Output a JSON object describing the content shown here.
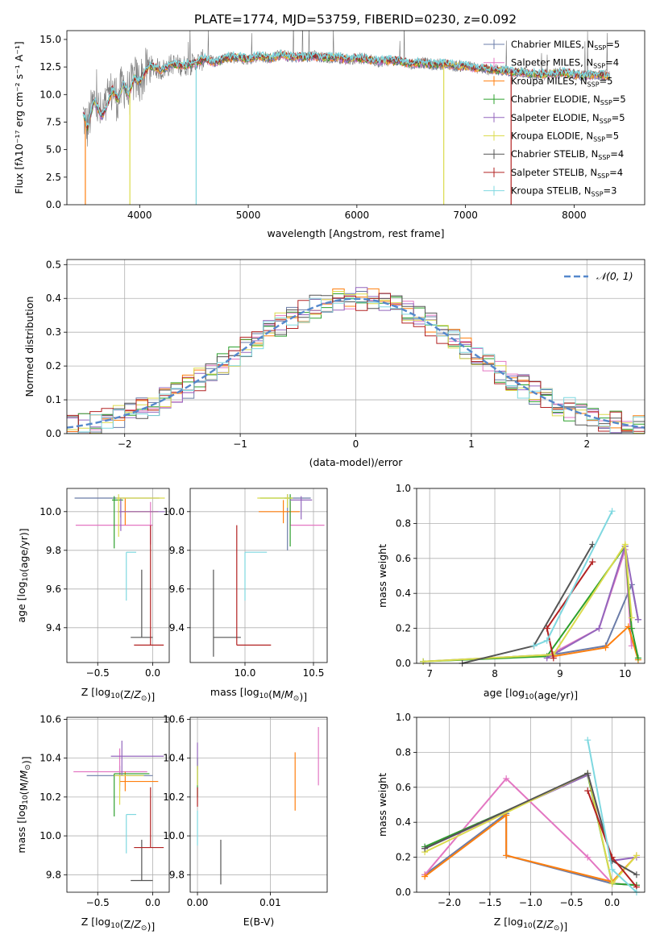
{
  "figure": {
    "title": "PLATE=1774, MJD=53759, FIBERID=0230, z=0.092"
  },
  "chart_data": [
    {
      "id": "spectrum",
      "type": "line",
      "xlabel": "wavelength [Angstrom, rest frame]",
      "ylabel": "Flux [f_λ 10^-17 erg cm^-2 s^-1 A^-1]",
      "xlim": [
        3330,
        8650
      ],
      "ylim": [
        0,
        15.8
      ],
      "xticks": [
        4000,
        5000,
        6000,
        7000,
        8000
      ],
      "yticks": [
        0.0,
        2.5,
        5.0,
        7.5,
        10.0,
        12.5,
        15.0
      ],
      "grid": false,
      "legend_position": "top-right",
      "data_wavelength": [
        3480,
        3520,
        3580,
        3650,
        3700,
        3750,
        3800,
        3850,
        3900,
        3950,
        4000,
        4050,
        4100,
        4200,
        4300,
        4400,
        4500,
        4600,
        4700,
        4800,
        4900,
        5000,
        5100,
        5200,
        5300,
        5400,
        5500,
        5600,
        5700,
        5800,
        5900,
        6000,
        6100,
        6200,
        6300,
        6400,
        6500,
        6600,
        6700,
        6800,
        6900,
        7000,
        7100,
        7200,
        7300,
        7400,
        7500,
        7600,
        7700,
        7800,
        7900,
        8000,
        8100,
        8200,
        8300
      ],
      "data_flux": [
        8.2,
        7.0,
        9.5,
        8.0,
        9.0,
        10.5,
        9.5,
        11.0,
        10.0,
        11.5,
        11.2,
        12.0,
        12.6,
        12.2,
        12.8,
        12.6,
        12.8,
        13.2,
        12.9,
        13.3,
        13.4,
        13.2,
        13.5,
        13.3,
        13.6,
        13.4,
        13.4,
        13.5,
        13.3,
        13.4,
        13.2,
        13.3,
        13.2,
        13.0,
        13.1,
        13.0,
        12.8,
        12.9,
        12.7,
        12.8,
        12.6,
        12.6,
        12.4,
        12.3,
        12.2,
        12.1,
        12.0,
        11.9,
        11.8,
        11.9,
        12.0,
        11.8,
        11.7,
        11.8,
        11.7
      ],
      "model_drops": [
        3500,
        3910,
        4520,
        6800,
        7420
      ],
      "series": [
        {
          "name": "Chabrier MILES, N_SSP=5",
          "color": "#6b7ca8"
        },
        {
          "name": "Salpeter MILES, N_SSP=4",
          "color": "#e377c2"
        },
        {
          "name": "Kroupa MILES, N_SSP=5",
          "color": "#ff7f0e"
        },
        {
          "name": "Chabrier ELODIE, N_SSP=5",
          "color": "#2ca02c"
        },
        {
          "name": "Salpeter ELODIE, N_SSP=5",
          "color": "#9467bd"
        },
        {
          "name": "Kroupa ELODIE, N_SSP=5",
          "color": "#dbdb4d"
        },
        {
          "name": "Chabrier STELIB, N_SSP=4",
          "color": "#555555"
        },
        {
          "name": "Salpeter STELIB, N_SSP=4",
          "color": "#b22222"
        },
        {
          "name": "Kroupa STELIB, N_SSP=3",
          "color": "#7fd8e0"
        }
      ]
    },
    {
      "id": "residuals",
      "type": "histogram",
      "xlabel": "(data-model)/error",
      "ylabel": "Normed distribution",
      "xlim": [
        -2.5,
        2.5
      ],
      "ylim": [
        0,
        0.515
      ],
      "xticks": [
        -2,
        -1,
        0,
        1,
        2
      ],
      "yticks": [
        0.0,
        0.1,
        0.2,
        0.3,
        0.4,
        0.5
      ],
      "grid": true,
      "legend": "𝒩(0, 1)",
      "legend_position": "top-right",
      "reference_color": "#5588cc",
      "bin_width": 0.1
    },
    {
      "id": "age-vs-Z",
      "type": "scatter",
      "xlabel": "Z [log10(Z/Z☉)]",
      "ylabel": "age [log10(age/yr)]",
      "xlim": [
        -0.78,
        0.15
      ],
      "ylim": [
        9.22,
        10.12
      ],
      "xticks": [
        -0.5,
        0.0
      ],
      "yticks": [
        9.4,
        9.6,
        9.8,
        10.0
      ],
      "grid": true,
      "points": [
        {
          "x": -0.29,
          "y": 10.07,
          "xerr": [
            0.42,
            0.35
          ],
          "yerr": [
            0.1,
            0.0
          ],
          "color": "#6b7ca8"
        },
        {
          "x": -0.02,
          "y": 9.93,
          "xerr": [
            0.68,
            0.02
          ],
          "yerr": [
            0.1,
            0.12
          ],
          "color": "#e377c2"
        },
        {
          "x": -0.25,
          "y": 10.0,
          "xerr": [
            0.05,
            0.3
          ],
          "yerr": [
            0.07,
            0.07
          ],
          "color": "#ff7f0e"
        },
        {
          "x": -0.35,
          "y": 10.06,
          "xerr": [
            0.02,
            0.08
          ],
          "yerr": [
            0.25,
            0.02
          ],
          "color": "#2ca02c"
        },
        {
          "x": -0.29,
          "y": 10.0,
          "xerr": [
            0.03,
            0.4
          ],
          "yerr": [
            0.1,
            0.07
          ],
          "color": "#9467bd"
        },
        {
          "x": -0.31,
          "y": 10.07,
          "xerr": [
            0.02,
            0.42
          ],
          "yerr": [
            0.2,
            0.02
          ],
          "color": "#dbdb4d"
        },
        {
          "x": -0.1,
          "y": 9.35,
          "xerr": [
            0.1,
            0.1
          ],
          "yerr": [
            0.0,
            0.35
          ],
          "color": "#555555"
        },
        {
          "x": -0.02,
          "y": 9.31,
          "xerr": [
            0.15,
            0.12
          ],
          "yerr": [
            0.0,
            0.62
          ],
          "color": "#b22222"
        },
        {
          "x": -0.24,
          "y": 9.79,
          "xerr": [
            0.0,
            0.09
          ],
          "yerr": [
            0.25,
            0.0
          ],
          "color": "#7fd8e0"
        }
      ]
    },
    {
      "id": "age-vs-mass",
      "type": "scatter",
      "xlabel": "mass [log10(M/M☉)]",
      "ylabel": "",
      "xlim": [
        9.6,
        10.6
      ],
      "ylim": [
        9.22,
        10.12
      ],
      "xticks": [
        10.0,
        10.5
      ],
      "yticks": [
        9.4,
        9.6,
        9.8,
        10.0
      ],
      "grid": true,
      "points": [
        {
          "x": 10.31,
          "y": 10.07,
          "xerr": [
            0.02,
            0.17
          ],
          "yerr": [
            0.27,
            0.02
          ],
          "color": "#6b7ca8"
        },
        {
          "x": 10.33,
          "y": 9.93,
          "xerr": [
            0.0,
            0.25
          ],
          "yerr": [
            0.0,
            0.12
          ],
          "color": "#e377c2"
        },
        {
          "x": 10.28,
          "y": 10.0,
          "xerr": [
            0.18,
            0.12
          ],
          "yerr": [
            0.06,
            0.06
          ],
          "color": "#ff7f0e"
        },
        {
          "x": 10.33,
          "y": 10.07,
          "xerr": [
            0.22,
            0.02
          ],
          "yerr": [
            0.25,
            0.02
          ],
          "color": "#2ca02c"
        },
        {
          "x": 10.41,
          "y": 10.06,
          "xerr": [
            0.08,
            0.08
          ],
          "yerr": [
            0.1,
            0.02
          ],
          "color": "#9467bd"
        },
        {
          "x": 10.31,
          "y": 10.07,
          "xerr": [
            0.22,
            0.04
          ],
          "yerr": [
            0.05,
            0.02
          ],
          "color": "#dbdb4d"
        },
        {
          "x": 9.77,
          "y": 9.35,
          "xerr": [
            0.0,
            0.2
          ],
          "yerr": [
            0.1,
            0.35
          ],
          "color": "#555555"
        },
        {
          "x": 9.94,
          "y": 9.31,
          "xerr": [
            0.0,
            0.25
          ],
          "yerr": [
            0.0,
            0.62
          ],
          "color": "#b22222"
        },
        {
          "x": 10.0,
          "y": 9.79,
          "xerr": [
            0.0,
            0.16
          ],
          "yerr": [
            0.25,
            0.0
          ],
          "color": "#7fd8e0"
        }
      ]
    },
    {
      "id": "weight-vs-age",
      "type": "line",
      "xlabel": "age [log10(age/yr)]",
      "ylabel": "mass weight",
      "xlim": [
        6.8,
        10.3
      ],
      "ylim": [
        0,
        1.0
      ],
      "xticks": [
        7,
        8,
        9,
        10
      ],
      "yticks": [
        0.0,
        0.2,
        0.4,
        0.6,
        0.8,
        1.0
      ],
      "grid": true,
      "series": [
        {
          "color": "#6b7ca8",
          "x": [
            6.9,
            8.9,
            9.7,
            10.1,
            10.2
          ],
          "y": [
            0.01,
            0.05,
            0.1,
            0.45,
            0.25
          ]
        },
        {
          "color": "#e377c2",
          "x": [
            8.8,
            9.6,
            10.0,
            10.1
          ],
          "y": [
            0.04,
            0.2,
            0.65,
            0.1
          ]
        },
        {
          "color": "#ff7f0e",
          "x": [
            8.9,
            9.7,
            10.05,
            10.2
          ],
          "y": [
            0.04,
            0.09,
            0.21,
            0.02
          ]
        },
        {
          "color": "#2ca02c",
          "x": [
            6.9,
            8.8,
            10.0,
            10.1,
            10.2
          ],
          "y": [
            0.01,
            0.04,
            0.67,
            0.2,
            0.03
          ]
        },
        {
          "color": "#9467bd",
          "x": [
            8.8,
            9.6,
            10.0,
            10.2
          ],
          "y": [
            0.03,
            0.2,
            0.67,
            0.25
          ]
        },
        {
          "color": "#dbdb4d",
          "x": [
            6.9,
            8.9,
            10.0,
            10.1
          ],
          "y": [
            0.01,
            0.05,
            0.68,
            0.26
          ]
        },
        {
          "color": "#555555",
          "x": [
            7.5,
            8.6,
            9.5
          ],
          "y": [
            0.0,
            0.1,
            0.68
          ]
        },
        {
          "color": "#b22222",
          "x": [
            8.9,
            8.8,
            9.5
          ],
          "y": [
            0.03,
            0.2,
            0.58
          ]
        },
        {
          "color": "#7fd8e0",
          "x": [
            8.6,
            8.8,
            9.8
          ],
          "y": [
            0.1,
            0.13,
            0.87
          ]
        }
      ]
    },
    {
      "id": "mass-vs-Z",
      "type": "scatter",
      "xlabel": "Z [log10(Z/Z☉)]",
      "ylabel": "mass [log10(M/M☉)]",
      "xlim": [
        -0.78,
        0.15
      ],
      "ylim": [
        9.71,
        10.61
      ],
      "xticks": [
        -0.5,
        0.0
      ],
      "yticks": [
        9.8,
        10.0,
        10.2,
        10.4,
        10.6
      ],
      "grid": true,
      "points": [
        {
          "x": -0.3,
          "y": 10.31,
          "xerr": [
            0.3,
            0.3
          ],
          "yerr": [
            0.05,
            0.05
          ],
          "color": "#6b7ca8"
        },
        {
          "x": -0.3,
          "y": 10.33,
          "xerr": [
            0.42,
            0.25
          ],
          "yerr": [
            0.1,
            0.12
          ],
          "color": "#e377c2"
        },
        {
          "x": -0.25,
          "y": 10.28,
          "xerr": [
            0.05,
            0.3
          ],
          "yerr": [
            0.05,
            0.05
          ],
          "color": "#ff7f0e"
        },
        {
          "x": -0.35,
          "y": 10.32,
          "xerr": [
            0.0,
            0.32
          ],
          "yerr": [
            0.22,
            0.0
          ],
          "color": "#2ca02c"
        },
        {
          "x": -0.28,
          "y": 10.41,
          "xerr": [
            0.1,
            0.38
          ],
          "yerr": [
            0.1,
            0.08
          ],
          "color": "#9467bd"
        },
        {
          "x": -0.3,
          "y": 10.31,
          "xerr": [
            0.05,
            0.22
          ],
          "yerr": [
            0.15,
            0.0
          ],
          "color": "#dbdb4d"
        },
        {
          "x": -0.1,
          "y": 9.77,
          "xerr": [
            0.1,
            0.1
          ],
          "yerr": [
            0.0,
            0.21
          ],
          "color": "#555555"
        },
        {
          "x": -0.02,
          "y": 9.94,
          "xerr": [
            0.15,
            0.12
          ],
          "yerr": [
            0.0,
            0.31
          ],
          "color": "#b22222"
        },
        {
          "x": -0.24,
          "y": 10.11,
          "xerr": [
            0.0,
            0.09
          ],
          "yerr": [
            0.2,
            0.0
          ],
          "color": "#7fd8e0"
        }
      ]
    },
    {
      "id": "mass-vs-ebv",
      "type": "scatter",
      "xlabel": "E(B-V)",
      "ylabel": "",
      "xlim": [
        -0.001,
        0.0178
      ],
      "ylim": [
        9.71,
        10.61
      ],
      "xticks": [
        0.0,
        0.01
      ],
      "yticks": [
        9.8,
        10.0,
        10.2,
        10.4,
        10.6
      ],
      "grid": true,
      "points": [
        {
          "x": 0.0,
          "y": 10.31,
          "xerr": [
            0,
            0
          ],
          "yerr": [
            0.05,
            0.05
          ],
          "color": "#6b7ca8"
        },
        {
          "x": 0.0166,
          "y": 10.41,
          "xerr": [
            0,
            0
          ],
          "yerr": [
            0.15,
            0.15
          ],
          "color": "#e377c2"
        },
        {
          "x": 0.0134,
          "y": 10.28,
          "xerr": [
            0,
            0
          ],
          "yerr": [
            0.15,
            0.15
          ],
          "color": "#ff7f0e"
        },
        {
          "x": 0.0,
          "y": 10.3,
          "xerr": [
            0,
            0
          ],
          "yerr": [
            0.1,
            0.1
          ],
          "color": "#2ca02c"
        },
        {
          "x": 0.0,
          "y": 10.41,
          "xerr": [
            0,
            0
          ],
          "yerr": [
            0.07,
            0.07
          ],
          "color": "#9467bd"
        },
        {
          "x": 0.0,
          "y": 10.31,
          "xerr": [
            0,
            0
          ],
          "yerr": [
            0.05,
            0.05
          ],
          "color": "#dbdb4d"
        },
        {
          "x": 0.0032,
          "y": 9.86,
          "xerr": [
            0,
            0
          ],
          "yerr": [
            0.11,
            0.12
          ],
          "color": "#555555"
        },
        {
          "x": 0.0,
          "y": 10.2,
          "xerr": [
            0,
            0
          ],
          "yerr": [
            0.05,
            0.05
          ],
          "color": "#b22222"
        },
        {
          "x": 0.0,
          "y": 10.05,
          "xerr": [
            0,
            0
          ],
          "yerr": [
            0.1,
            0.08
          ],
          "color": "#7fd8e0"
        }
      ]
    },
    {
      "id": "weight-vs-Z",
      "type": "line",
      "xlabel": "Z [log10(Z/Z☉)]",
      "ylabel": "mass weight",
      "xlim": [
        -2.4,
        0.4
      ],
      "ylim": [
        0,
        1.0
      ],
      "xticks": [
        -2.0,
        -1.5,
        -1.0,
        -0.5,
        0.0
      ],
      "yticks": [
        0.0,
        0.2,
        0.4,
        0.6,
        0.8,
        1.0
      ],
      "grid": true,
      "series": [
        {
          "color": "#6b7ca8",
          "x": [
            -2.3,
            -1.3,
            -1.3,
            0.0,
            0.3
          ],
          "y": [
            0.1,
            0.45,
            0.21,
            0.05,
            0.04
          ]
        },
        {
          "color": "#e377c2",
          "x": [
            -2.3,
            -1.3,
            -0.3,
            0.0,
            0.3
          ],
          "y": [
            0.1,
            0.65,
            0.2,
            0.05,
            0.04
          ]
        },
        {
          "color": "#ff7f0e",
          "x": [
            -2.3,
            -1.3,
            -1.3,
            0.0,
            0.3
          ],
          "y": [
            0.09,
            0.44,
            0.21,
            0.06,
            0.21
          ]
        },
        {
          "color": "#2ca02c",
          "x": [
            -2.3,
            -0.3,
            0.0,
            0.3
          ],
          "y": [
            0.26,
            0.67,
            0.05,
            0.04
          ]
        },
        {
          "color": "#9467bd",
          "x": [
            -2.3,
            -0.3,
            0.0,
            0.3
          ],
          "y": [
            0.25,
            0.67,
            0.18,
            0.2
          ]
        },
        {
          "color": "#dbdb4d",
          "x": [
            -2.3,
            -0.3,
            0.0,
            0.3
          ],
          "y": [
            0.23,
            0.68,
            0.05,
            0.21
          ]
        },
        {
          "color": "#555555",
          "x": [
            -2.3,
            -0.3,
            0.0,
            0.3
          ],
          "y": [
            0.25,
            0.68,
            0.18,
            0.1
          ]
        },
        {
          "color": "#b22222",
          "x": [
            -0.3,
            0.0,
            0.3
          ],
          "y": [
            0.58,
            0.2,
            0.03
          ]
        },
        {
          "color": "#7fd8e0",
          "x": [
            -0.3,
            0.0,
            0.3
          ],
          "y": [
            0.87,
            0.13,
            0.0
          ]
        }
      ]
    }
  ]
}
